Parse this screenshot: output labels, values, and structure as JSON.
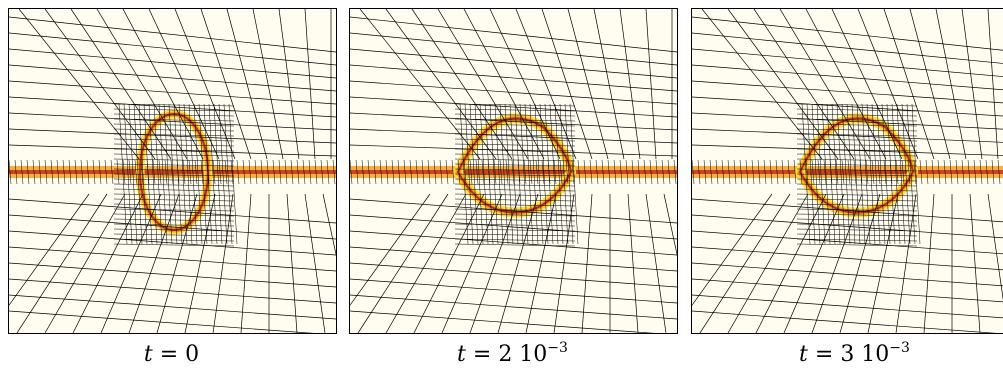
{
  "panels": [
    {
      "id": "p0",
      "caption": {
        "variable": "t",
        "equals": " = ",
        "mantissa": "0",
        "exponent": ""
      },
      "shape": "ellipse-vertical"
    },
    {
      "id": "p1",
      "caption": {
        "variable": "t",
        "equals": " = ",
        "mantissa": "2 10",
        "exponent": "−3"
      },
      "shape": "lens-horizontal"
    },
    {
      "id": "p2",
      "caption": {
        "variable": "t",
        "equals": " = ",
        "mantissa": "3 10",
        "exponent": "−3"
      },
      "shape": "lens-horizontal"
    }
  ],
  "colors": {
    "background": "#fffdf0",
    "band_light": "#ffe23a",
    "band_mid": "#f6a21c",
    "band_dark": "#c1281b",
    "mesh": "#000000"
  }
}
